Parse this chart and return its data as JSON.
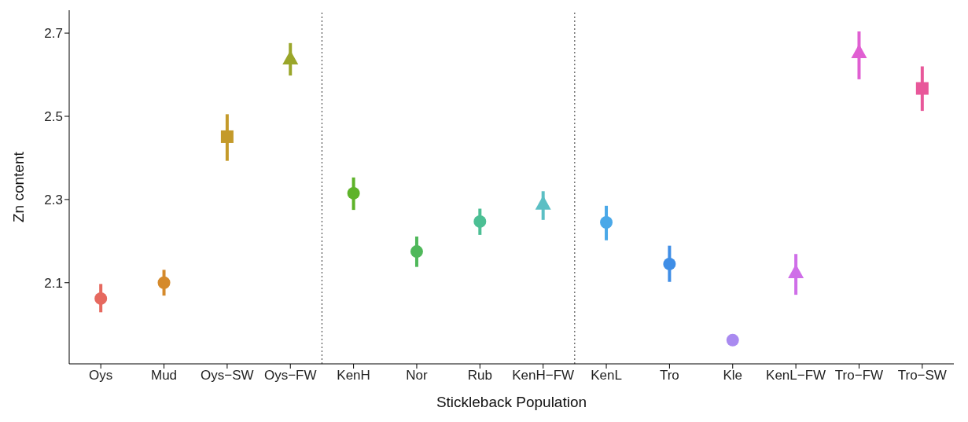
{
  "chart_data": {
    "type": "scatter",
    "xlabel": "Stickleback Population",
    "ylabel": "Zn content",
    "categories": [
      "Oys",
      "Mud",
      "Oys−SW",
      "Oys−FW",
      "KenH",
      "Nor",
      "Rub",
      "KenH−FW",
      "KenL",
      "Tro",
      "Kle",
      "KenL−FW",
      "Tro−FW",
      "Tro−SW"
    ],
    "series": [
      {
        "marker": "circle",
        "x": [
          "Oys",
          "Mud",
          "KenH",
          "Nor",
          "Rub",
          "KenL",
          "Tro",
          "Kle"
        ],
        "values": [
          2.062,
          2.1,
          2.315,
          2.175,
          2.247,
          2.245,
          2.145,
          1.962
        ],
        "errors": [
          [
            2.029,
            2.097
          ],
          [
            2.069,
            2.131
          ],
          [
            2.275,
            2.353
          ],
          [
            2.138,
            2.211
          ],
          [
            2.215,
            2.278
          ],
          [
            2.202,
            2.285
          ],
          [
            2.102,
            2.189
          ],
          null
        ],
        "colors": [
          "#e6695f",
          "#d58a2c",
          "#5eb32a",
          "#4fb85a",
          "#4cbf94",
          "#4aa8e8",
          "#3f8ee6",
          "#a98af0"
        ]
      },
      {
        "marker": "square",
        "x": [
          "Oys−SW",
          "Tro−SW"
        ],
        "values": [
          2.451,
          2.567
        ],
        "errors": [
          [
            2.393,
            2.505
          ],
          [
            2.513,
            2.62
          ]
        ],
        "colors": [
          "#c49a2a",
          "#e8589a"
        ]
      },
      {
        "marker": "triangle",
        "x": [
          "Oys−FW",
          "KenH−FW",
          "KenL−FW",
          "Tro−FW"
        ],
        "values": [
          2.638,
          2.289,
          2.124,
          2.653
        ],
        "errors": [
          [
            2.598,
            2.676
          ],
          [
            2.251,
            2.32
          ],
          [
            2.071,
            2.169
          ],
          [
            2.589,
            2.704
          ]
        ],
        "colors": [
          "#9aa62a",
          "#5bbfc4",
          "#cf6ee8",
          "#e05fd2"
        ]
      }
    ],
    "ylim": [
      1.905,
      2.755
    ],
    "yticks": [
      2.1,
      2.3,
      2.5,
      2.7
    ],
    "grid": false,
    "legend": false
  }
}
